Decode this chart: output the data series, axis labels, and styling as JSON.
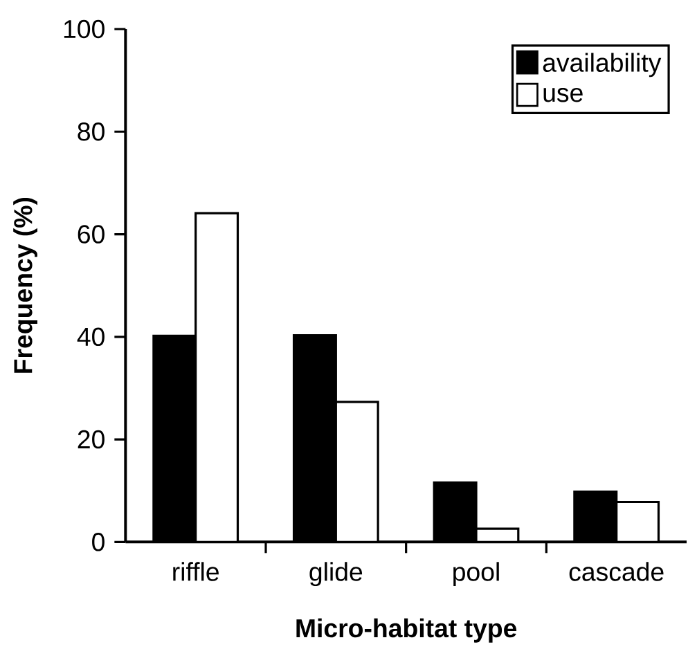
{
  "chart_data": {
    "type": "bar",
    "xlabel": "Micro-habitat type",
    "ylabel": "Frequency (%)",
    "categories": [
      "riffle",
      "glide",
      "pool",
      "cascade"
    ],
    "series": [
      {
        "name": "availability",
        "color": "#000000",
        "values": [
          40.2,
          40.3,
          11.6,
          9.8
        ]
      },
      {
        "name": "use",
        "color": "#ffffff",
        "values": [
          64.1,
          27.3,
          2.6,
          7.8
        ]
      }
    ],
    "ylim": [
      0,
      100
    ],
    "yticks": [
      0,
      20,
      40,
      60,
      80,
      100
    ],
    "legend": "top right"
  }
}
